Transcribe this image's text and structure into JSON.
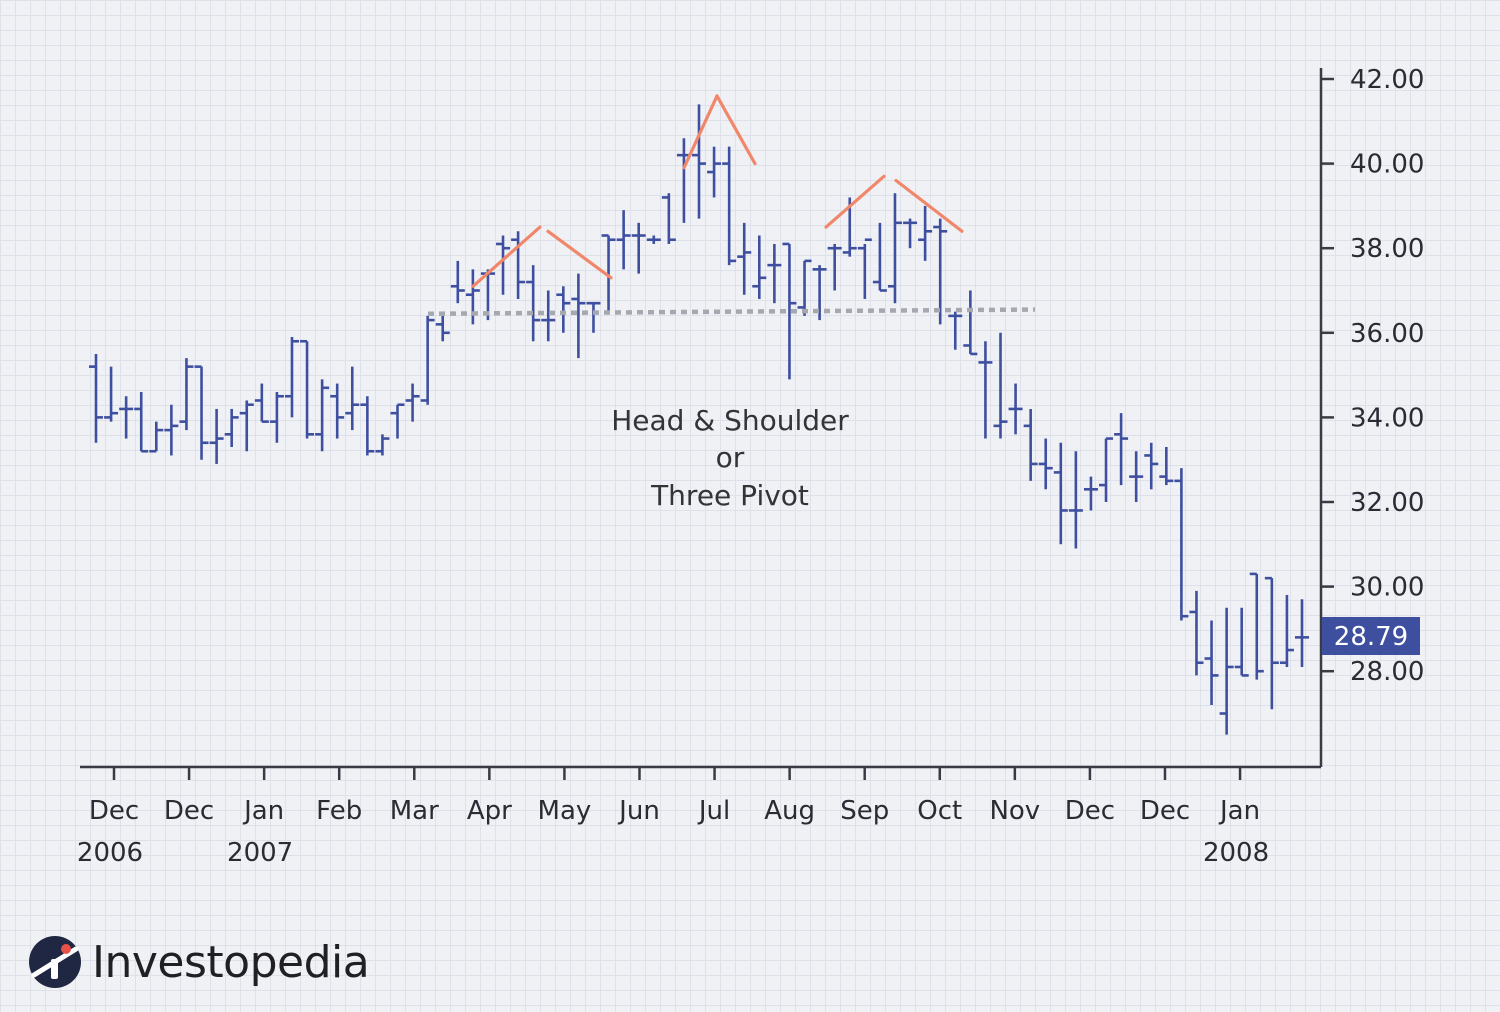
{
  "chart_data": {
    "type": "ohlc",
    "title": "",
    "annotation": [
      "Head & Shoulder",
      "or",
      "Three Pivot"
    ],
    "xlabel": "",
    "ylabel": "",
    "ylim": [
      26.0,
      42.5
    ],
    "y_ticks": [
      "42.00",
      "40.00",
      "38.00",
      "36.00",
      "34.00",
      "32.00",
      "30.00",
      "28.00"
    ],
    "y_tick_values": [
      42,
      40,
      38,
      36,
      34,
      32,
      30,
      28
    ],
    "x_ticks": [
      {
        "month": "Dec",
        "year": "2006"
      },
      {
        "month": "Dec",
        "year": ""
      },
      {
        "month": "Jan",
        "year": "2007"
      },
      {
        "month": "Feb",
        "year": ""
      },
      {
        "month": "Mar",
        "year": ""
      },
      {
        "month": "Apr",
        "year": ""
      },
      {
        "month": "May",
        "year": ""
      },
      {
        "month": "Jun",
        "year": ""
      },
      {
        "month": "Jul",
        "year": ""
      },
      {
        "month": "Aug",
        "year": ""
      },
      {
        "month": "Sep",
        "year": ""
      },
      {
        "month": "Oct",
        "year": ""
      },
      {
        "month": "Nov",
        "year": ""
      },
      {
        "month": "Dec",
        "year": ""
      },
      {
        "month": "Dec",
        "year": ""
      },
      {
        "month": "Jan",
        "year": "2008"
      }
    ],
    "last_price": "28.79",
    "neckline": [
      36.45,
      36.55
    ],
    "bars": [
      [
        35.2,
        35.5,
        33.4,
        34.0
      ],
      [
        34.0,
        35.2,
        33.9,
        34.1
      ],
      [
        34.2,
        34.5,
        33.5,
        34.2
      ],
      [
        34.2,
        34.6,
        33.2,
        33.2
      ],
      [
        33.2,
        33.9,
        33.2,
        33.7
      ],
      [
        33.7,
        34.3,
        33.1,
        33.8
      ],
      [
        33.9,
        35.4,
        33.7,
        35.2
      ],
      [
        35.2,
        35.2,
        33.0,
        33.4
      ],
      [
        33.4,
        34.2,
        32.9,
        33.5
      ],
      [
        33.6,
        34.2,
        33.3,
        34.0
      ],
      [
        34.1,
        34.4,
        33.2,
        34.3
      ],
      [
        34.4,
        34.8,
        33.9,
        33.9
      ],
      [
        33.9,
        34.6,
        33.4,
        34.5
      ],
      [
        34.5,
        35.9,
        34.0,
        35.8
      ],
      [
        35.8,
        35.8,
        33.5,
        33.6
      ],
      [
        33.6,
        34.9,
        33.2,
        34.7
      ],
      [
        34.5,
        34.8,
        33.5,
        34.0
      ],
      [
        34.1,
        35.2,
        33.7,
        34.3
      ],
      [
        34.3,
        34.5,
        33.1,
        33.2
      ],
      [
        33.2,
        33.6,
        33.1,
        33.5
      ],
      [
        34.1,
        34.3,
        33.5,
        34.3
      ],
      [
        34.4,
        34.8,
        33.9,
        34.5
      ],
      [
        34.4,
        36.4,
        34.3,
        36.3
      ],
      [
        36.2,
        36.4,
        35.8,
        36.0
      ],
      [
        37.1,
        37.7,
        36.7,
        37.0
      ],
      [
        36.9,
        37.5,
        36.2,
        37.0
      ],
      [
        37.4,
        37.5,
        36.3,
        37.4
      ],
      [
        38.1,
        38.3,
        36.9,
        38.0
      ],
      [
        38.2,
        38.4,
        36.8,
        37.2
      ],
      [
        37.2,
        37.6,
        35.8,
        36.3
      ],
      [
        36.3,
        37.0,
        35.8,
        36.3
      ],
      [
        36.9,
        37.1,
        36.0,
        36.7
      ],
      [
        36.8,
        37.4,
        35.4,
        36.7
      ],
      [
        36.7,
        36.7,
        36.0,
        36.7
      ],
      [
        38.3,
        38.3,
        36.5,
        38.2
      ],
      [
        38.2,
        38.9,
        37.5,
        38.3
      ],
      [
        38.3,
        38.6,
        37.4,
        38.3
      ],
      [
        38.2,
        38.3,
        38.1,
        38.2
      ],
      [
        39.2,
        39.3,
        38.1,
        38.2
      ],
      [
        40.2,
        40.6,
        38.6,
        40.2
      ],
      [
        40.2,
        41.4,
        38.7,
        40.0
      ],
      [
        39.8,
        40.4,
        39.2,
        40.0
      ],
      [
        40.0,
        40.4,
        37.6,
        37.7
      ],
      [
        37.8,
        38.6,
        36.9,
        37.9
      ],
      [
        37.1,
        38.3,
        36.8,
        37.3
      ],
      [
        37.6,
        38.1,
        36.7,
        37.6
      ],
      [
        38.1,
        38.1,
        34.9,
        36.7
      ],
      [
        36.6,
        37.7,
        36.4,
        37.7
      ],
      [
        37.5,
        37.6,
        36.3,
        37.5
      ],
      [
        38.0,
        38.1,
        37.0,
        38.0
      ],
      [
        37.9,
        39.2,
        37.8,
        38.0
      ],
      [
        38.0,
        38.1,
        36.8,
        38.2
      ],
      [
        37.2,
        38.6,
        37.0,
        37.0
      ],
      [
        37.1,
        39.3,
        36.7,
        38.6
      ],
      [
        38.6,
        38.7,
        38.0,
        38.6
      ],
      [
        38.2,
        39.0,
        37.7,
        38.4
      ],
      [
        38.5,
        38.7,
        36.2,
        38.4
      ],
      [
        36.4,
        36.5,
        35.6,
        36.4
      ],
      [
        35.7,
        37.0,
        35.5,
        35.5
      ],
      [
        35.3,
        35.8,
        33.5,
        35.3
      ],
      [
        33.8,
        36.0,
        33.5,
        33.9
      ],
      [
        34.2,
        34.8,
        33.6,
        34.2
      ],
      [
        33.8,
        34.2,
        32.5,
        32.9
      ],
      [
        32.9,
        33.5,
        32.3,
        32.8
      ],
      [
        32.7,
        33.4,
        31.0,
        31.8
      ],
      [
        31.8,
        33.2,
        30.9,
        31.8
      ],
      [
        32.3,
        32.6,
        31.8,
        32.3
      ],
      [
        32.4,
        33.5,
        32.0,
        33.5
      ],
      [
        33.6,
        34.1,
        32.4,
        33.5
      ],
      [
        32.6,
        33.2,
        32.0,
        32.6
      ],
      [
        33.1,
        33.4,
        32.3,
        32.9
      ],
      [
        32.6,
        33.3,
        32.4,
        32.5
      ],
      [
        32.5,
        32.8,
        29.2,
        29.3
      ],
      [
        29.4,
        29.9,
        27.9,
        28.2
      ],
      [
        28.3,
        29.2,
        27.2,
        27.9
      ],
      [
        27.0,
        29.5,
        26.5,
        28.1
      ],
      [
        28.1,
        29.5,
        27.9,
        27.9
      ],
      [
        30.3,
        30.3,
        27.8,
        28.0
      ],
      [
        30.2,
        30.2,
        27.1,
        28.2
      ],
      [
        28.2,
        29.8,
        28.1,
        28.5
      ],
      [
        28.8,
        29.7,
        28.1,
        28.8
      ]
    ]
  },
  "brand": {
    "name": "Investopedia",
    "bar_color": "#3e4fa0",
    "pivot_color": "#f0876a",
    "neckline_color": "#a6a8b0",
    "price_tag_color": "#3e4fa0",
    "axis_color": "#3a3a44"
  }
}
